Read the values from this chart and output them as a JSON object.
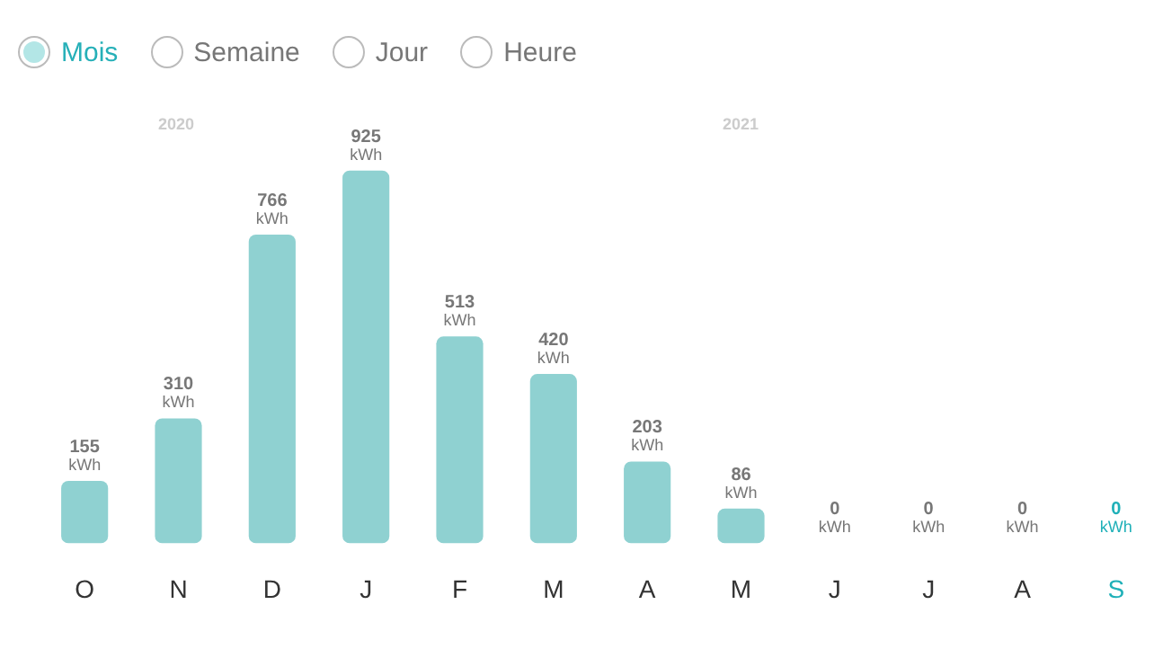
{
  "chart_data": {
    "type": "bar",
    "categories": [
      "O",
      "N",
      "D",
      "J",
      "F",
      "M",
      "A",
      "M",
      "J",
      "J",
      "A",
      "S"
    ],
    "values": [
      155,
      310,
      766,
      925,
      513,
      420,
      203,
      86,
      0,
      0,
      0,
      0
    ],
    "value_labels": [
      "155 kWh",
      "310 kWh",
      "766 kWh",
      "925 kWh",
      "513 kWh",
      "420 kWh",
      "203 kWh",
      "86 kWh",
      "0 kWh",
      "0 kWh",
      "0 kWh",
      "0 kWh"
    ],
    "colors": [
      "#8fd1d1",
      "#8fd1d1",
      "#8fd1d1",
      "#8fd1d1",
      "#8fd1d1",
      "#8fd1d1",
      "#8fd1d1",
      "#8fd1d1",
      "#8fd1d1",
      "#8fd1d1",
      "#8fd1d1",
      "#1fb0b8"
    ],
    "annotations": [
      "Mois",
      "Semaine",
      "Jour",
      "Heure",
      "2020",
      "2021"
    ],
    "grid": false,
    "legend": false
  }
}
